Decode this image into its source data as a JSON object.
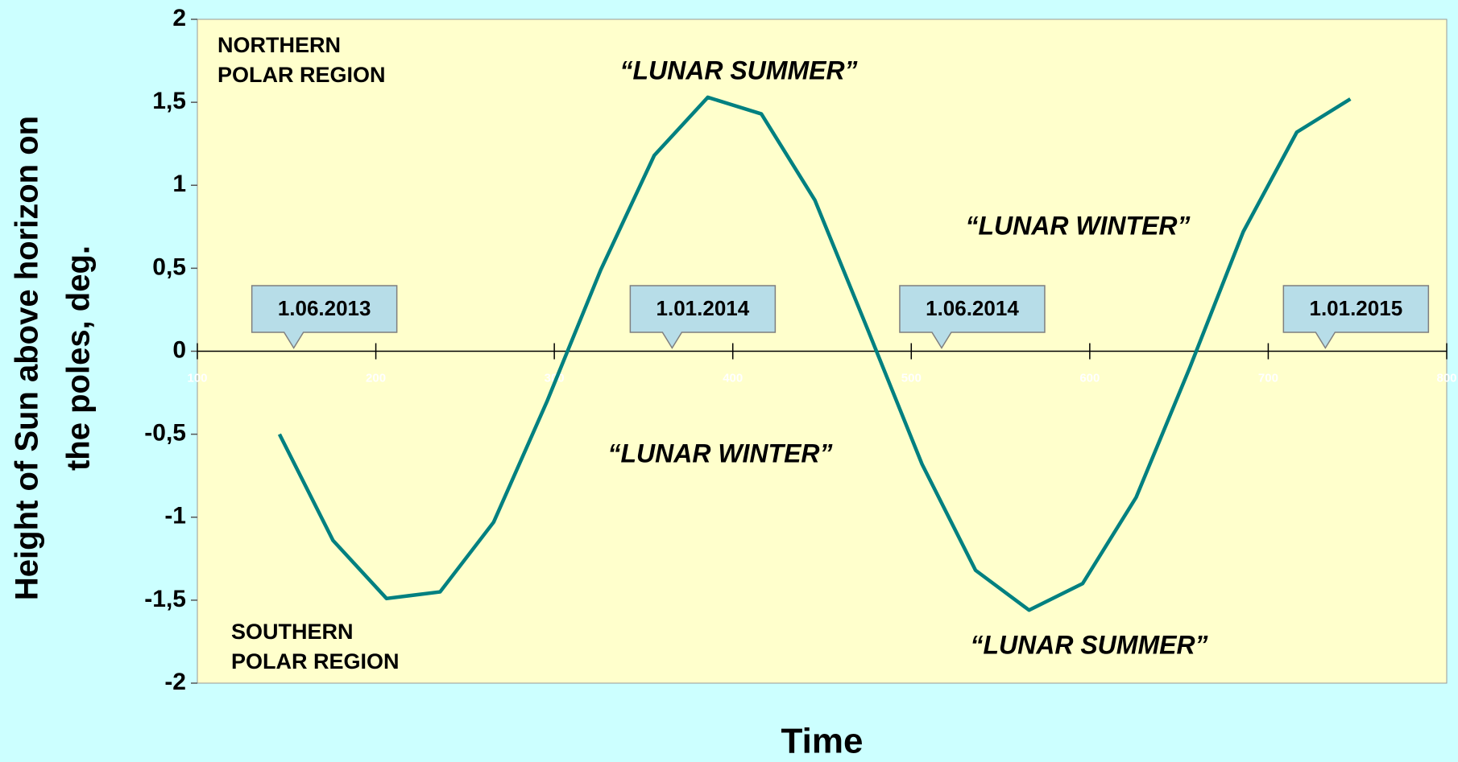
{
  "chart_data": {
    "type": "line",
    "x_label": "Time",
    "y_label": [
      "Height of Sun above horizon on",
      "the poles, deg."
    ],
    "x": [
      146,
      176,
      206,
      236,
      266,
      296,
      326,
      356,
      386,
      416,
      446,
      476,
      506,
      536,
      566,
      596,
      626,
      656,
      686,
      716,
      746
    ],
    "series": [
      {
        "color": "#008080",
        "values": [
          -0.5,
          -1.14,
          -1.49,
          -1.45,
          -1.03,
          -0.3,
          0.49,
          1.18,
          1.53,
          1.43,
          0.91,
          0.12,
          -0.68,
          -1.32,
          -1.56,
          -1.4,
          -0.88,
          -0.1,
          0.72,
          1.32,
          1.52
        ]
      }
    ],
    "xlim": [
      100,
      800
    ],
    "xticks": [
      100,
      200,
      300,
      400,
      500,
      600,
      700,
      800
    ],
    "ylim": [
      -2,
      2
    ],
    "yticks": [
      {
        "value": -2,
        "label": "-2"
      },
      {
        "value": -1.5,
        "label": "-1,5"
      },
      -1,
      {
        "value": -0.5,
        "label": "-0,5"
      },
      0,
      {
        "value": 0.5,
        "label": "0,5"
      },
      1,
      {
        "value": 1.5,
        "label": "1,5"
      },
      2
    ],
    "date_callouts": [
      {
        "text": "1.06.2013",
        "x": 154
      },
      {
        "text": "1.01.2014",
        "x": 366
      },
      {
        "text": "1.06.2014",
        "x": 517
      },
      {
        "text": "1.01.2015",
        "x": 732
      }
    ],
    "annotations": [
      {
        "lines": [
          "NORTHERN",
          "POLAR REGION"
        ]
      },
      {
        "lines": [
          "“LUNAR SUMMER”"
        ]
      },
      {
        "lines": [
          "“LUNAR WINTER”"
        ]
      },
      {
        "lines": [
          "“LUNAR WINTER”"
        ]
      },
      {
        "lines": [
          "“LUNAR SUMMER”"
        ]
      },
      {
        "lines": [
          "SOUTHERN",
          "POLAR REGION"
        ]
      }
    ]
  }
}
